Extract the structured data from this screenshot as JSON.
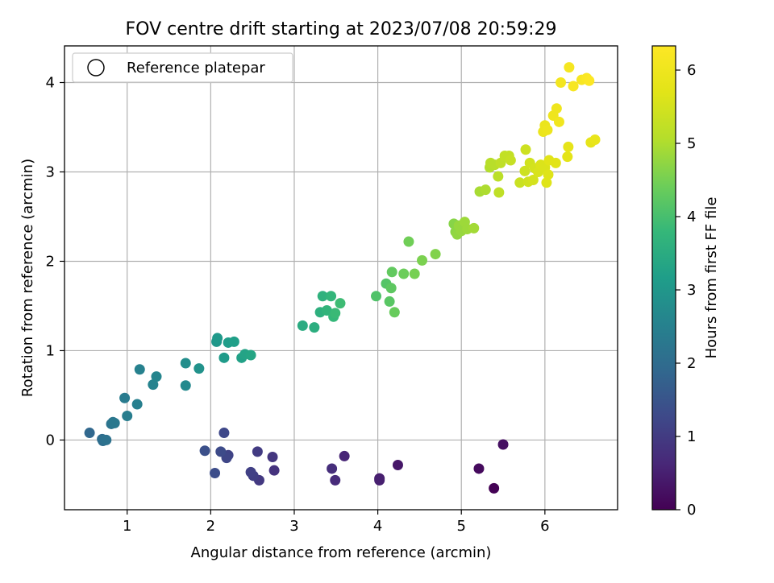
{
  "chart_data": {
    "type": "scatter",
    "title": "FOV centre drift starting at 2023/07/08 20:59:29",
    "xlabel": "Angular distance from reference (arcmin)",
    "ylabel": "Rotation from reference (arcmin)",
    "xlim": [
      0.25,
      6.87
    ],
    "ylim": [
      -0.78,
      4.41
    ],
    "xticks": [
      1,
      2,
      3,
      4,
      5,
      6
    ],
    "yticks": [
      0,
      1,
      2,
      3,
      4
    ],
    "grid": true,
    "legend": {
      "placement": "top-left",
      "entries": [
        {
          "label": "Reference platepar",
          "marker": "open-circle"
        }
      ]
    },
    "colorbar": {
      "label": "Hours from first FF file",
      "colormap": "viridis",
      "range": [
        0,
        6.33
      ],
      "ticks": [
        0,
        1,
        2,
        3,
        4,
        5,
        6
      ]
    },
    "series": [
      {
        "points": [
          [
            5.39,
            -0.54,
            0.02
          ],
          [
            5.21,
            -0.32,
            0.15
          ],
          [
            5.5,
            -0.05,
            0.25
          ],
          [
            4.24,
            -0.28,
            0.35
          ],
          [
            4.02,
            -0.43,
            0.45
          ],
          [
            4.02,
            -0.45,
            0.5
          ],
          [
            3.6,
            -0.18,
            0.6
          ],
          [
            3.49,
            -0.45,
            0.7
          ],
          [
            3.45,
            -0.32,
            0.75
          ],
          [
            2.76,
            -0.34,
            0.85
          ],
          [
            2.74,
            -0.19,
            0.9
          ],
          [
            2.58,
            -0.45,
            0.95
          ],
          [
            2.56,
            -0.13,
            1.0
          ],
          [
            2.51,
            -0.4,
            1.05
          ],
          [
            2.48,
            -0.36,
            1.1
          ],
          [
            2.21,
            -0.17,
            1.15
          ],
          [
            2.19,
            -0.2,
            1.2
          ],
          [
            2.16,
            0.08,
            1.25
          ],
          [
            2.12,
            -0.13,
            1.3
          ],
          [
            2.05,
            -0.37,
            1.35
          ],
          [
            1.93,
            -0.12,
            1.4
          ],
          [
            0.55,
            0.08,
            1.9
          ],
          [
            0.7,
            0.01,
            2.0
          ],
          [
            0.71,
            -0.01,
            2.05
          ],
          [
            0.73,
            0.0,
            2.1
          ],
          [
            0.75,
            0.0,
            2.15
          ],
          [
            0.81,
            0.18,
            2.2
          ],
          [
            0.83,
            0.2,
            2.25
          ],
          [
            0.85,
            0.19,
            2.3
          ],
          [
            0.97,
            0.47,
            2.35
          ],
          [
            1.0,
            0.27,
            2.4
          ],
          [
            1.12,
            0.4,
            2.45
          ],
          [
            1.15,
            0.79,
            2.5
          ],
          [
            1.31,
            0.62,
            2.55
          ],
          [
            1.35,
            0.71,
            2.6
          ],
          [
            1.7,
            0.61,
            2.7
          ],
          [
            1.7,
            0.86,
            2.8
          ],
          [
            1.86,
            0.8,
            2.9
          ],
          [
            2.07,
            1.1,
            3.0
          ],
          [
            2.08,
            1.14,
            3.05
          ],
          [
            2.16,
            0.92,
            3.1
          ],
          [
            2.21,
            1.09,
            3.15
          ],
          [
            2.28,
            1.1,
            3.2
          ],
          [
            2.37,
            0.92,
            3.25
          ],
          [
            2.41,
            0.96,
            3.3
          ],
          [
            2.48,
            0.95,
            3.35
          ],
          [
            3.1,
            1.28,
            3.5
          ],
          [
            3.24,
            1.26,
            3.55
          ],
          [
            3.31,
            1.43,
            3.6
          ],
          [
            3.34,
            1.61,
            3.65
          ],
          [
            3.39,
            1.45,
            3.7
          ],
          [
            3.44,
            1.61,
            3.75
          ],
          [
            3.47,
            1.38,
            3.8
          ],
          [
            3.49,
            1.42,
            3.85
          ],
          [
            3.55,
            1.53,
            3.9
          ],
          [
            3.98,
            1.61,
            4.1
          ],
          [
            4.1,
            1.75,
            4.15
          ],
          [
            4.14,
            1.55,
            4.2
          ],
          [
            4.16,
            1.7,
            4.25
          ],
          [
            4.17,
            1.88,
            4.3
          ],
          [
            4.2,
            1.43,
            4.35
          ],
          [
            4.31,
            1.86,
            4.4
          ],
          [
            4.37,
            2.22,
            4.45
          ],
          [
            4.44,
            1.86,
            4.5
          ],
          [
            4.53,
            2.01,
            4.55
          ],
          [
            4.69,
            2.08,
            4.6
          ],
          [
            4.91,
            2.42,
            4.65
          ],
          [
            4.93,
            2.33,
            4.7
          ],
          [
            4.95,
            2.3,
            4.75
          ],
          [
            4.97,
            2.4,
            4.8
          ],
          [
            5.0,
            2.34,
            4.8
          ],
          [
            5.04,
            2.44,
            4.85
          ],
          [
            5.07,
            2.36,
            4.85
          ],
          [
            5.15,
            2.37,
            4.9
          ],
          [
            5.22,
            2.78,
            4.95
          ],
          [
            5.29,
            2.8,
            5.0
          ],
          [
            5.34,
            3.05,
            5.05
          ],
          [
            5.35,
            3.1,
            5.1
          ],
          [
            5.4,
            3.08,
            5.1
          ],
          [
            5.44,
            2.95,
            5.15
          ],
          [
            5.45,
            2.77,
            5.2
          ],
          [
            5.47,
            3.1,
            5.2
          ],
          [
            5.52,
            3.18,
            5.25
          ],
          [
            5.57,
            3.18,
            5.25
          ],
          [
            5.59,
            3.13,
            5.3
          ],
          [
            5.7,
            2.88,
            5.35
          ],
          [
            5.76,
            3.01,
            5.4
          ],
          [
            5.77,
            3.25,
            5.4
          ],
          [
            5.8,
            2.89,
            5.45
          ],
          [
            5.82,
            3.1,
            5.45
          ],
          [
            5.86,
            2.91,
            5.5
          ],
          [
            5.88,
            3.04,
            5.5
          ],
          [
            5.92,
            3.0,
            5.55
          ],
          [
            5.95,
            3.08,
            5.6
          ],
          [
            6.0,
            3.05,
            5.6
          ],
          [
            6.02,
            2.88,
            5.65
          ],
          [
            6.04,
            2.97,
            5.65
          ],
          [
            6.05,
            3.13,
            5.7
          ],
          [
            6.13,
            3.1,
            5.7
          ],
          [
            6.27,
            3.17,
            5.75
          ],
          [
            6.28,
            3.28,
            5.8
          ],
          [
            6.55,
            3.33,
            5.8
          ],
          [
            6.6,
            3.36,
            5.85
          ],
          [
            5.98,
            3.45,
            5.9
          ],
          [
            6.0,
            3.52,
            5.9
          ],
          [
            6.03,
            3.47,
            5.95
          ],
          [
            6.1,
            3.63,
            6.0
          ],
          [
            6.14,
            3.71,
            6.0
          ],
          [
            6.17,
            3.56,
            6.05
          ],
          [
            6.19,
            4.0,
            6.1
          ],
          [
            6.29,
            4.17,
            6.15
          ],
          [
            6.34,
            3.96,
            6.2
          ],
          [
            6.44,
            4.03,
            6.2
          ],
          [
            6.5,
            4.05,
            6.25
          ],
          [
            6.53,
            4.02,
            6.3
          ]
        ]
      }
    ]
  }
}
